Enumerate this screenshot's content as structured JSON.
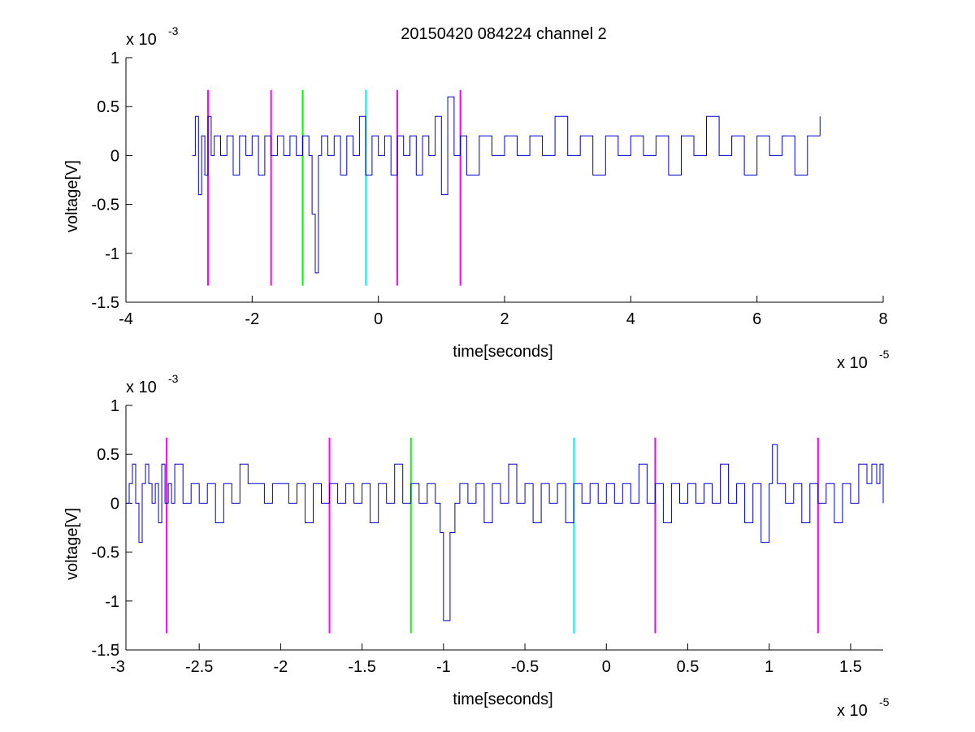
{
  "figure_title": "20150420 084224 channel 2",
  "chart_data": [
    {
      "type": "line",
      "title": "20150420 084224 channel 2",
      "xlabel": "time[seconds]",
      "ylabel": "voltage[V]",
      "x_multiplier_label": {
        "base": "x 10",
        "power": "-5"
      },
      "y_multiplier_label": {
        "base": "x 10",
        "power": "-3"
      },
      "xlim": [
        -4,
        8
      ],
      "ylim": [
        -1.5,
        1
      ],
      "x_ticks": [
        -4,
        -2,
        0,
        2,
        4,
        6,
        8
      ],
      "x_tick_labels": [
        "-4",
        "-2",
        "0",
        "2",
        "4",
        "6",
        "8"
      ],
      "y_ticks": [
        -1.5,
        -1,
        -0.5,
        0,
        0.5,
        1
      ],
      "y_tick_labels": [
        "-1.5",
        "-1",
        "-0.5",
        "0",
        "0.5",
        "1"
      ],
      "grid": false,
      "series": [
        {
          "color": "#0000cc",
          "x": [
            -2.95,
            -2.9,
            -2.85,
            -2.8,
            -2.75,
            -2.7,
            -2.65,
            -2.6,
            -2.5,
            -2.4,
            -2.3,
            -2.2,
            -2.1,
            -2.0,
            -1.9,
            -1.8,
            -1.7,
            -1.6,
            -1.5,
            -1.4,
            -1.3,
            -1.2,
            -1.1,
            -1.05,
            -1.0,
            -0.95,
            -0.9,
            -0.8,
            -0.7,
            -0.6,
            -0.5,
            -0.4,
            -0.3,
            -0.2,
            -0.1,
            0.0,
            0.1,
            0.2,
            0.3,
            0.4,
            0.5,
            0.6,
            0.7,
            0.8,
            0.9,
            1.0,
            1.1,
            1.2,
            1.3,
            1.4,
            1.6,
            1.8,
            2.0,
            2.2,
            2.4,
            2.6,
            2.8,
            3.0,
            3.2,
            3.4,
            3.6,
            3.8,
            4.0,
            4.2,
            4.4,
            4.6,
            4.8,
            5.0,
            5.2,
            5.4,
            5.6,
            5.8,
            6.0,
            6.2,
            6.4,
            6.6,
            6.8,
            7.0
          ],
          "y": [
            0.0,
            0.4,
            -0.4,
            0.2,
            -0.2,
            0.4,
            0.0,
            0.2,
            0.0,
            0.2,
            -0.2,
            0.2,
            0.0,
            0.2,
            -0.2,
            0.2,
            0.0,
            0.2,
            0.0,
            0.2,
            0.0,
            0.2,
            0.0,
            -0.6,
            -1.2,
            0.0,
            0.2,
            0.0,
            0.2,
            -0.2,
            0.2,
            0.0,
            0.4,
            -0.2,
            0.2,
            0.0,
            0.2,
            -0.2,
            0.2,
            0.0,
            0.2,
            -0.2,
            0.2,
            0.0,
            0.4,
            -0.4,
            0.6,
            0.0,
            0.2,
            -0.2,
            0.2,
            0.0,
            0.2,
            0.0,
            0.2,
            0.0,
            0.4,
            0.0,
            0.2,
            -0.2,
            0.2,
            0.0,
            0.2,
            0.0,
            0.2,
            -0.2,
            0.2,
            0.0,
            0.4,
            0.0,
            0.2,
            -0.2,
            0.2,
            0.0,
            0.2,
            -0.2,
            0.2,
            0.4
          ]
        }
      ],
      "vertical_markers": [
        {
          "x": -2.7,
          "color": "#ff00ff",
          "y_range": [
            -1.33,
            0.67
          ]
        },
        {
          "x": -1.7,
          "color": "#ff00ff",
          "y_range": [
            -1.33,
            0.67
          ]
        },
        {
          "x": -1.2,
          "color": "#00ff00",
          "y_range": [
            -1.33,
            0.67
          ]
        },
        {
          "x": -0.2,
          "color": "#00ffff",
          "y_range": [
            -1.33,
            0.67
          ]
        },
        {
          "x": 0.3,
          "color": "#ff00ff",
          "y_range": [
            -1.33,
            0.67
          ]
        },
        {
          "x": 1.3,
          "color": "#ff00ff",
          "y_range": [
            -1.33,
            0.67
          ]
        }
      ]
    },
    {
      "type": "line",
      "title": "",
      "xlabel": "time[seconds]",
      "ylabel": "voltage[V]",
      "x_multiplier_label": {
        "base": "x 10",
        "power": "-5"
      },
      "y_multiplier_label": {
        "base": "x 10",
        "power": "-3"
      },
      "xlim": [
        -2.95,
        1.7
      ],
      "ylim": [
        -1.5,
        1
      ],
      "x_ticks": [
        -3,
        -2.5,
        -2,
        -1.5,
        -1,
        -0.5,
        0,
        0.5,
        1,
        1.5
      ],
      "x_tick_labels": [
        "-3",
        "-2.5",
        "-2",
        "-1.5",
        "-1",
        "-0.5",
        "0",
        "0.5",
        "1",
        "1.5"
      ],
      "y_ticks": [
        -1.5,
        -1,
        -0.5,
        0,
        0.5,
        1
      ],
      "y_tick_labels": [
        "-1.5",
        "-1",
        "-0.5",
        "0",
        "0.5",
        "1"
      ],
      "grid": false,
      "series": [
        {
          "color": "#0000cc",
          "x": [
            -2.95,
            -2.93,
            -2.91,
            -2.89,
            -2.87,
            -2.85,
            -2.83,
            -2.81,
            -2.79,
            -2.77,
            -2.75,
            -2.73,
            -2.71,
            -2.69,
            -2.67,
            -2.65,
            -2.6,
            -2.55,
            -2.5,
            -2.45,
            -2.4,
            -2.35,
            -2.3,
            -2.25,
            -2.2,
            -2.15,
            -2.1,
            -2.05,
            -2.0,
            -1.95,
            -1.9,
            -1.85,
            -1.8,
            -1.75,
            -1.7,
            -1.65,
            -1.6,
            -1.55,
            -1.5,
            -1.45,
            -1.4,
            -1.35,
            -1.3,
            -1.25,
            -1.2,
            -1.15,
            -1.1,
            -1.05,
            -1.02,
            -1.0,
            -0.98,
            -0.96,
            -0.93,
            -0.9,
            -0.85,
            -0.8,
            -0.75,
            -0.7,
            -0.65,
            -0.6,
            -0.55,
            -0.5,
            -0.45,
            -0.4,
            -0.35,
            -0.3,
            -0.25,
            -0.2,
            -0.15,
            -0.1,
            -0.05,
            0.0,
            0.05,
            0.1,
            0.15,
            0.2,
            0.25,
            0.3,
            0.35,
            0.4,
            0.45,
            0.5,
            0.55,
            0.6,
            0.65,
            0.7,
            0.75,
            0.8,
            0.85,
            0.9,
            0.95,
            1.0,
            1.02,
            1.05,
            1.1,
            1.15,
            1.2,
            1.25,
            1.3,
            1.35,
            1.4,
            1.45,
            1.5,
            1.55,
            1.6,
            1.63,
            1.66,
            1.68,
            1.7
          ],
          "y": [
            0.0,
            0.2,
            0.4,
            0.0,
            -0.4,
            0.2,
            0.4,
            0.2,
            0.0,
            0.2,
            -0.2,
            0.4,
            0.0,
            0.2,
            0.0,
            0.4,
            0.0,
            0.2,
            0.0,
            0.2,
            -0.2,
            0.2,
            0.0,
            0.4,
            0.2,
            0.2,
            0.0,
            0.2,
            0.2,
            0.0,
            0.2,
            -0.2,
            0.2,
            0.0,
            0.2,
            0.0,
            0.2,
            0.0,
            0.2,
            -0.2,
            0.2,
            0.0,
            0.4,
            0.0,
            0.2,
            0.0,
            0.2,
            0.0,
            -0.3,
            -1.2,
            -1.2,
            -0.3,
            0.0,
            0.2,
            0.0,
            0.2,
            -0.2,
            0.2,
            0.0,
            0.4,
            0.0,
            0.2,
            -0.2,
            0.2,
            0.0,
            0.2,
            -0.2,
            0.2,
            0.0,
            0.2,
            0.0,
            0.2,
            0.0,
            0.2,
            0.0,
            0.4,
            0.0,
            0.2,
            -0.2,
            0.2,
            0.0,
            0.2,
            0.0,
            0.2,
            0.0,
            0.4,
            0.0,
            0.2,
            -0.2,
            0.2,
            -0.4,
            0.2,
            0.6,
            0.2,
            0.0,
            0.2,
            -0.2,
            0.2,
            0.0,
            0.2,
            -0.2,
            0.2,
            0.0,
            0.4,
            0.2,
            0.4,
            0.2,
            0.4,
            0.0
          ]
        }
      ],
      "vertical_markers": [
        {
          "x": -2.7,
          "color": "#ff00ff",
          "y_range": [
            -1.33,
            0.67
          ]
        },
        {
          "x": -1.7,
          "color": "#ff00ff",
          "y_range": [
            -1.33,
            0.67
          ]
        },
        {
          "x": -1.2,
          "color": "#00ff00",
          "y_range": [
            -1.33,
            0.67
          ]
        },
        {
          "x": -0.2,
          "color": "#00ffff",
          "y_range": [
            -1.33,
            0.67
          ]
        },
        {
          "x": 0.3,
          "color": "#ff00ff",
          "y_range": [
            -1.33,
            0.67
          ]
        },
        {
          "x": 1.3,
          "color": "#ff00ff",
          "y_range": [
            -1.33,
            0.67
          ]
        }
      ]
    }
  ]
}
